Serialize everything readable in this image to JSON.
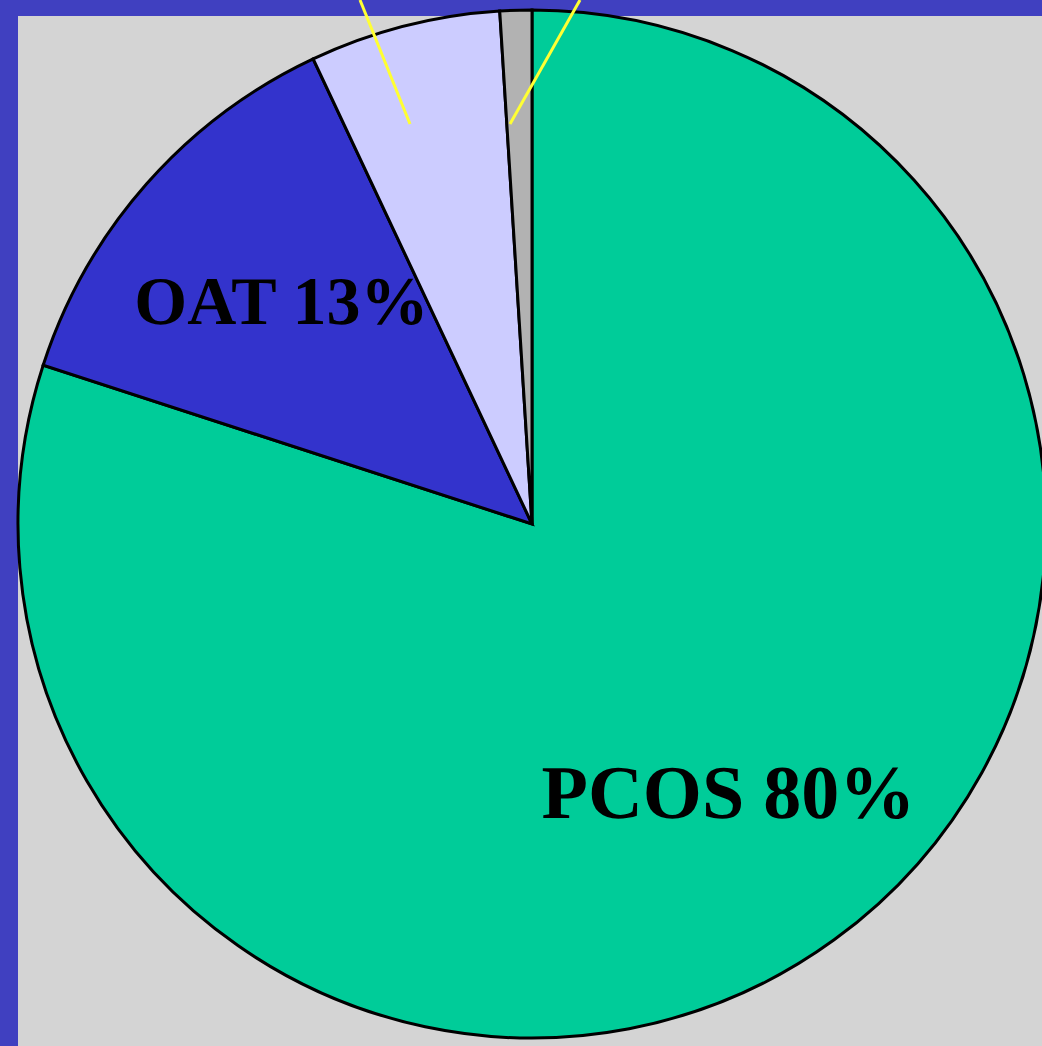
{
  "chart_data": {
    "type": "pie",
    "categories": [
      "PCOS",
      "OAT",
      null,
      null
    ],
    "values": [
      80,
      13,
      6,
      1
    ],
    "value_labels": [
      "80%",
      "13%",
      null,
      null
    ],
    "colors": [
      "#00cc99",
      "#3333cc",
      "#ccccff",
      "#b2b2b2"
    ]
  }
}
